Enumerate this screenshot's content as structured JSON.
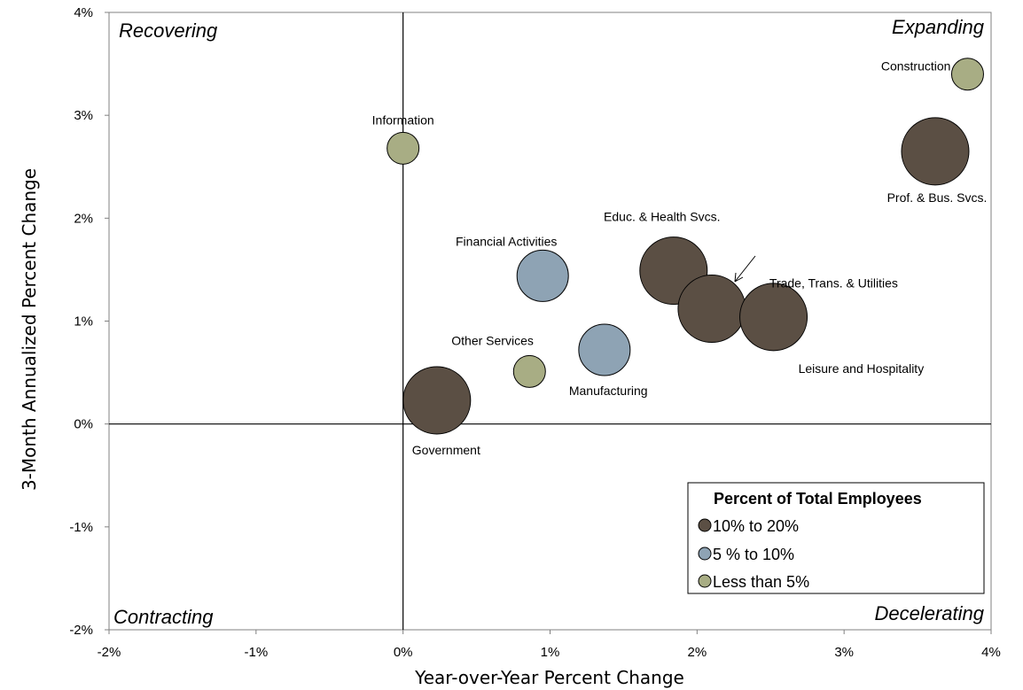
{
  "chart_data": {
    "type": "scatter",
    "subtype": "bubble",
    "xlabel": "Year-over-Year Percent Change",
    "ylabel": "3-Month Annualized Percent Change",
    "xlim": [
      -2,
      4
    ],
    "ylim": [
      -2,
      4
    ],
    "x_ticks": [
      "-2%",
      "-1%",
      "0%",
      "1%",
      "2%",
      "3%",
      "4%"
    ],
    "y_ticks": [
      "4%",
      "3%",
      "2%",
      "1%",
      "0%",
      "-1%",
      "-2%"
    ],
    "grid": false,
    "quadrants": {
      "top_left": "Recovering",
      "top_right": "Expanding",
      "bottom_left": "Contracting",
      "bottom_right": "Decelerating"
    },
    "legend": {
      "title": "Percent of Total Employees",
      "position": "bottom-right",
      "items": [
        {
          "label": "10% to 20%",
          "color": "#5b4f44"
        },
        {
          "label": "5 % to 10%",
          "color": "#8ea3b4"
        },
        {
          "label": "Less than 5%",
          "color": "#a8ad84"
        }
      ]
    },
    "points": [
      {
        "label": "Construction",
        "x": 3.84,
        "y": 3.4,
        "size": "Less than 5%",
        "color": "#a8ad84"
      },
      {
        "label": "Prof. & Bus. Svcs.",
        "x": 3.62,
        "y": 2.65,
        "size": "10% to 20%",
        "color": "#5b4f44"
      },
      {
        "label": "Information",
        "x": 0.0,
        "y": 2.68,
        "size": "Less than 5%",
        "color": "#a8ad84"
      },
      {
        "label": "Financial Activities",
        "x": 0.95,
        "y": 1.44,
        "size": "5 % to 10%",
        "color": "#8ea3b4"
      },
      {
        "label": "Educ. & Health Svcs.",
        "x": 1.84,
        "y": 1.49,
        "size": "10% to 20%",
        "color": "#5b4f44"
      },
      {
        "label": "Trade, Trans. & Utilities",
        "x": 2.1,
        "y": 1.12,
        "size": "10% to 20%",
        "color": "#5b4f44"
      },
      {
        "label": "Leisure and Hospitality",
        "x": 2.52,
        "y": 1.04,
        "size": "10% to 20%",
        "color": "#5b4f44"
      },
      {
        "label": "Manufacturing",
        "x": 1.37,
        "y": 0.72,
        "size": "5 % to 10%",
        "color": "#8ea3b4"
      },
      {
        "label": "Other Services",
        "x": 0.86,
        "y": 0.51,
        "size": "Less than 5%",
        "color": "#a8ad84"
      },
      {
        "label": "Government",
        "x": 0.23,
        "y": 0.23,
        "size": "10% to 20%",
        "color": "#5b4f44"
      }
    ]
  }
}
